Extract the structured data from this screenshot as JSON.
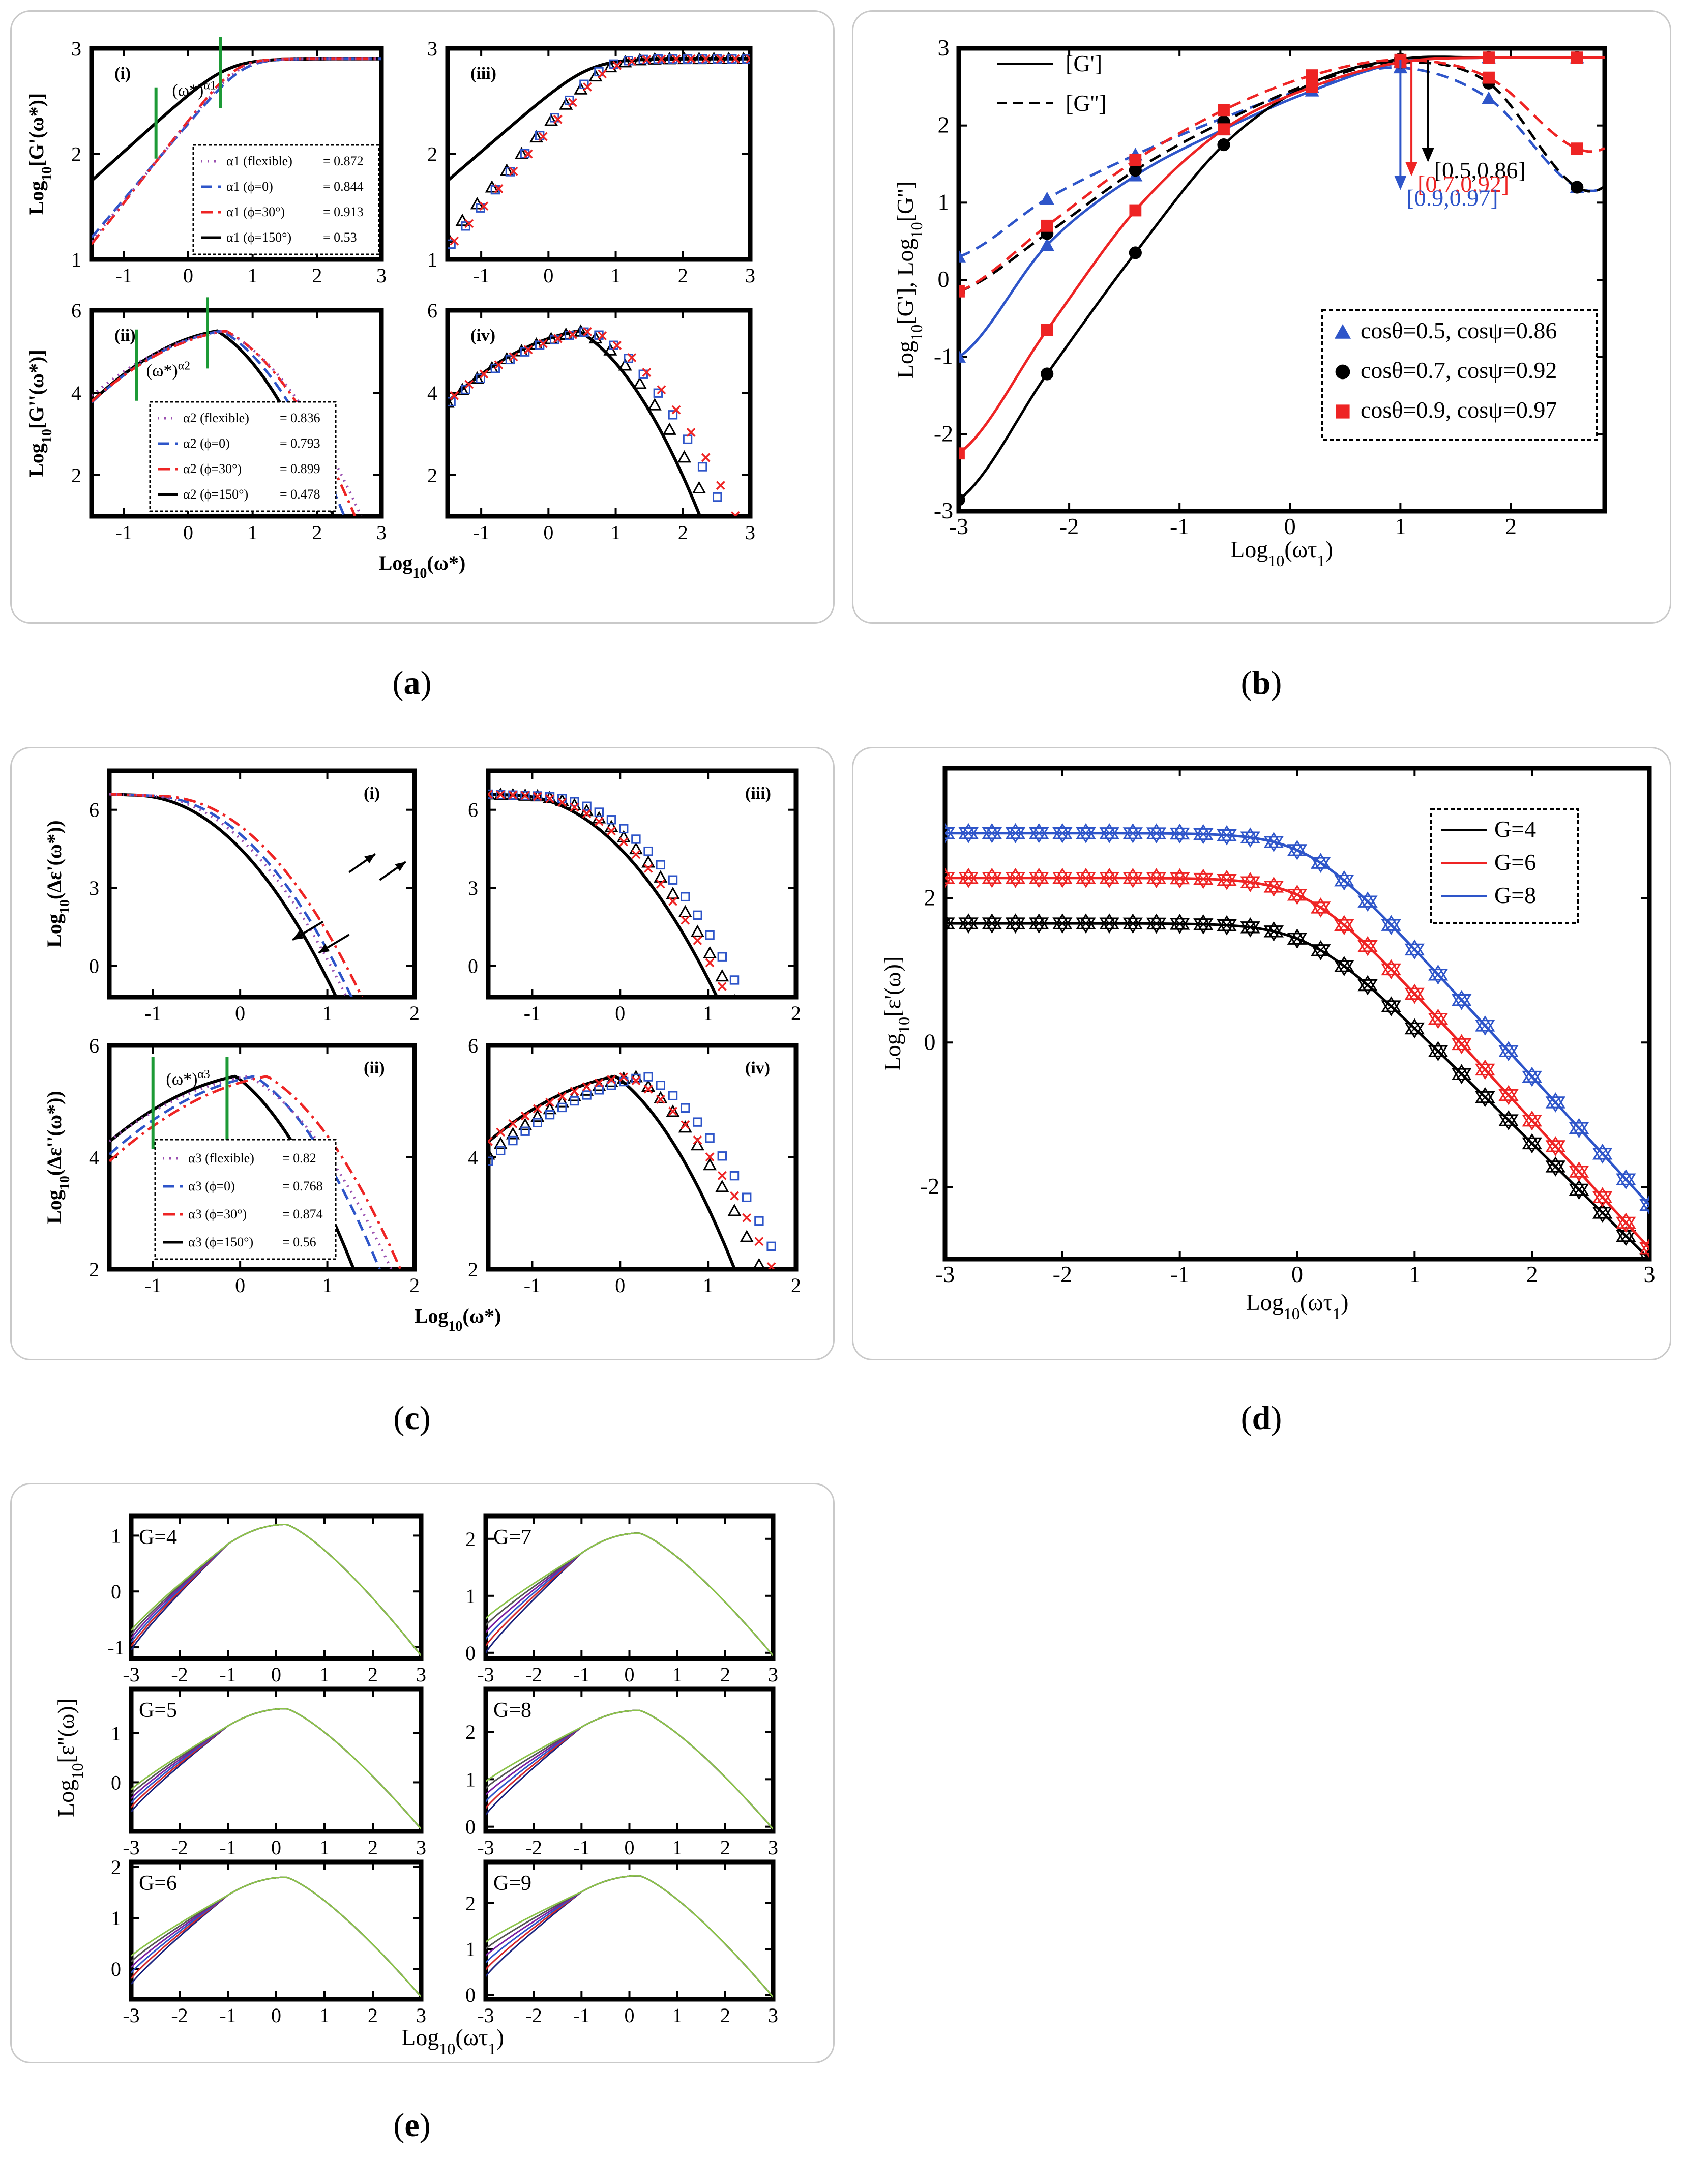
{
  "captions": {
    "a": "a",
    "b": "b",
    "c": "c",
    "d": "d",
    "e": "e"
  },
  "colors": {
    "black": "#000000",
    "blue": "#2e55c9",
    "red": "#ee2424",
    "purple": "#9a4fb0",
    "green": "#1c9a36"
  },
  "chart_data": [
    {
      "id": "a",
      "type": "line",
      "xlabel": "Log10(ω*)",
      "subplots": [
        {
          "label": "(i)",
          "ylabel": "Log10[G'(ω*)]",
          "xlim": [
            -1.5,
            3
          ],
          "ylim": [
            1,
            3
          ],
          "xticks": [
            -1,
            0,
            1,
            2,
            3
          ],
          "yticks": [
            1,
            2,
            3
          ],
          "annotation": "(ω*)^α1",
          "legend": [
            {
              "label": "α1 (flexible)",
              "value": "= 0.872",
              "color": "#9a4fb0",
              "style": "dot"
            },
            {
              "label": "α1 (ϕ=0)",
              "value": "= 0.844",
              "color": "#2e55c9",
              "style": "dash"
            },
            {
              "label": "α1 (ϕ=30°)",
              "value": "= 0.913",
              "color": "#ee2424",
              "style": "dashdot"
            },
            {
              "label": "α1 (ϕ=150°)",
              "value": "= 0.53",
              "color": "#000000",
              "style": "solid"
            }
          ]
        },
        {
          "label": "(iii)",
          "ylabel": "",
          "xlim": [
            -1.5,
            3
          ],
          "ylim": [
            1,
            3
          ],
          "xticks": [
            -1,
            0,
            1,
            2,
            3
          ],
          "yticks": [
            1,
            2,
            3
          ]
        },
        {
          "label": "(ii)",
          "ylabel": "Log10[G''(ω*)]",
          "xlim": [
            -1.5,
            3
          ],
          "ylim": [
            1,
            6
          ],
          "xticks": [
            -1,
            0,
            1,
            2,
            3
          ],
          "yticks": [
            2,
            4,
            6
          ],
          "annotation": "(ω*)^α2",
          "legend": [
            {
              "label": "α2 (flexible)",
              "value": "= 0.836",
              "color": "#9a4fb0",
              "style": "dot"
            },
            {
              "label": "α2 (ϕ=0)",
              "value": "= 0.793",
              "color": "#2e55c9",
              "style": "dash"
            },
            {
              "label": "α2 (ϕ=30°)",
              "value": "= 0.899",
              "color": "#ee2424",
              "style": "dashdot"
            },
            {
              "label": "α2 (ϕ=150°)",
              "value": "= 0.478",
              "color": "#000000",
              "style": "solid"
            }
          ]
        },
        {
          "label": "(iv)",
          "ylabel": "",
          "xlim": [
            -1.5,
            3
          ],
          "ylim": [
            1,
            6
          ],
          "xticks": [
            -1,
            0,
            1,
            2,
            3
          ],
          "yticks": [
            2,
            4,
            6
          ]
        }
      ]
    },
    {
      "id": "b",
      "type": "line",
      "xlabel": "Log10(ωτ1)",
      "ylabel": "Log10[G'], Log10[G'']",
      "xlim": [
        -3,
        2.85
      ],
      "ylim": [
        -3,
        3
      ],
      "xticks": [
        -3,
        -2,
        -1,
        0,
        1,
        2
      ],
      "yticks": [
        -3,
        -2,
        -1,
        0,
        1,
        2,
        3
      ],
      "style_legend": [
        {
          "label": "[G']",
          "style": "solid"
        },
        {
          "label": "[G'']",
          "style": "dash"
        }
      ],
      "legend": [
        {
          "label": "cosθ=0.5, cosψ=0.86",
          "color": "#2e55c9",
          "marker": "triangle"
        },
        {
          "label": "cosθ=0.7, cosψ=0.92",
          "color": "#000000",
          "marker": "circle"
        },
        {
          "label": "cosθ=0.9, cosψ=0.97",
          "color": "#ee2424",
          "marker": "square"
        }
      ],
      "crossovers": [
        {
          "label": "[0.5,0.86]",
          "x": 1.25,
          "color": "#000000"
        },
        {
          "label": "[0.7,0.92]",
          "x": 1.1,
          "color": "#ee2424"
        },
        {
          "label": "[0.9,0.97]",
          "x": 1.0,
          "color": "#2e55c9"
        }
      ],
      "x": [
        -3,
        -2.2,
        -1.4,
        -0.6,
        0.2,
        1.0,
        1.8,
        2.6
      ],
      "series": [
        {
          "name": "G' (0.5,0.86)",
          "color": "#2e55c9",
          "style": "solid",
          "marker": "triangle",
          "values": [
            -1.0,
            0.45,
            1.35,
            1.95,
            2.45,
            2.82,
            2.88,
            2.88
          ]
        },
        {
          "name": "G'' (0.5,0.86)",
          "color": "#2e55c9",
          "style": "dash",
          "marker": "triangle",
          "values": [
            0.3,
            1.05,
            1.62,
            2.1,
            2.5,
            2.75,
            2.35,
            1.2
          ]
        },
        {
          "name": "G' (0.7,0.92)",
          "color": "#000000",
          "style": "solid",
          "marker": "circle",
          "values": [
            -2.85,
            -1.22,
            0.35,
            1.75,
            2.55,
            2.86,
            2.88,
            2.88
          ]
        },
        {
          "name": "G'' (0.7,0.92)",
          "color": "#000000",
          "style": "dash",
          "marker": "circle",
          "values": [
            -0.15,
            0.6,
            1.42,
            2.05,
            2.55,
            2.82,
            2.55,
            1.2
          ]
        },
        {
          "name": "G' (0.9,0.97)",
          "color": "#ee2424",
          "style": "solid",
          "marker": "square",
          "values": [
            -2.25,
            -0.65,
            0.9,
            1.95,
            2.5,
            2.82,
            2.88,
            2.88
          ]
        },
        {
          "name": "G'' (0.9,0.97)",
          "color": "#ee2424",
          "style": "dash",
          "marker": "square",
          "values": [
            -0.15,
            0.7,
            1.55,
            2.2,
            2.65,
            2.85,
            2.62,
            1.7
          ]
        }
      ]
    },
    {
      "id": "c",
      "type": "line",
      "xlabel": "Log10(ω*)",
      "subplots": [
        {
          "label": "(i)",
          "ylabel": "Log10(Δε'(ω*))",
          "xlim": [
            -1.5,
            2
          ],
          "ylim": [
            -1.2,
            7.5
          ],
          "xticks": [
            -1,
            0,
            1,
            2
          ],
          "yticks": [
            0,
            3,
            6
          ]
        },
        {
          "label": "(iii)",
          "ylabel": "",
          "xlim": [
            -1.5,
            2
          ],
          "ylim": [
            -1.2,
            7.5
          ],
          "xticks": [
            -1,
            0,
            1,
            2
          ],
          "yticks": [
            0,
            3,
            6
          ]
        },
        {
          "label": "(ii)",
          "ylabel": "Log10(Δε''(ω*))",
          "xlim": [
            -1.5,
            2
          ],
          "ylim": [
            2,
            6
          ],
          "xticks": [
            -1,
            0,
            1,
            2
          ],
          "yticks": [
            2,
            4,
            6
          ],
          "annotation": "(ω*)^α3",
          "legend": [
            {
              "label": "α3 (flexible)",
              "value": "= 0.82",
              "color": "#9a4fb0",
              "style": "dot"
            },
            {
              "label": "α3 (ϕ=0)",
              "value": "= 0.768",
              "color": "#2e55c9",
              "style": "dash"
            },
            {
              "label": "α3 (ϕ=30°)",
              "value": "= 0.874",
              "color": "#ee2424",
              "style": "dashdot"
            },
            {
              "label": "α3 (ϕ=150°)",
              "value": "= 0.56",
              "color": "#000000",
              "style": "solid"
            }
          ]
        },
        {
          "label": "(iv)",
          "ylabel": "",
          "xlim": [
            -1.5,
            2
          ],
          "ylim": [
            2,
            6
          ],
          "xticks": [
            -1,
            0,
            1,
            2
          ],
          "yticks": [
            2,
            4,
            6
          ]
        }
      ]
    },
    {
      "id": "d",
      "type": "line",
      "xlabel": "Log10(ωτ1)",
      "ylabel": "Log10[ε'(ω)]",
      "xlim": [
        -3,
        3
      ],
      "ylim": [
        -3,
        3.8
      ],
      "xticks": [
        -3,
        -2,
        -1,
        0,
        1,
        2,
        3
      ],
      "yticks": [
        -2,
        0,
        2
      ],
      "legend": [
        {
          "label": "G=4",
          "color": "#000000"
        },
        {
          "label": "G=6",
          "color": "#ee2424"
        },
        {
          "label": "G=8",
          "color": "#2e55c9"
        }
      ],
      "series": [
        {
          "name": "G=4",
          "color": "#000000",
          "start": 1.65,
          "end": -3.0
        },
        {
          "name": "G=6",
          "color": "#ee2424",
          "start": 2.28,
          "end": -2.85
        },
        {
          "name": "G=8",
          "color": "#2e55c9",
          "start": 2.9,
          "end": -2.25
        }
      ]
    },
    {
      "id": "e",
      "type": "line",
      "xlabel": "Log10(ωτ1)",
      "ylabel": "Log10[ε''(ω)]",
      "line_colors": [
        "#1a237e",
        "#d62728",
        "#2e55c9",
        "#7b1fa2",
        "#555555",
        "#8bc34a"
      ],
      "subplots": [
        {
          "label": "G=4",
          "xlim": [
            -3,
            3
          ],
          "ylim": [
            -1.2,
            1.35
          ],
          "yticks": [
            -1,
            0,
            1
          ],
          "xticks": [
            -3,
            -2,
            -1,
            0,
            1,
            2,
            3
          ],
          "peak": 1.2,
          "low": -1.05,
          "spread": 0.35
        },
        {
          "label": "G=7",
          "xlim": [
            -3,
            3
          ],
          "ylim": [
            -0.1,
            2.4
          ],
          "yticks": [
            0,
            1,
            2
          ],
          "xticks": [
            -3,
            -2,
            -1,
            0,
            1,
            2,
            3
          ],
          "peak": 2.1,
          "low": 0.0,
          "spread": 0.6
        },
        {
          "label": "G=5",
          "xlim": [
            -3,
            3
          ],
          "ylim": [
            -1.0,
            1.9
          ],
          "yticks": [
            0,
            1
          ],
          "xticks": [
            -3,
            -2,
            -1,
            0,
            1,
            2,
            3
          ],
          "peak": 1.5,
          "low": -0.6,
          "spread": 0.45
        },
        {
          "label": "G=8",
          "xlim": [
            -3,
            3
          ],
          "ylim": [
            -0.1,
            2.9
          ],
          "yticks": [
            0,
            1,
            2
          ],
          "xticks": [
            -3,
            -2,
            -1,
            0,
            1,
            2,
            3
          ],
          "peak": 2.45,
          "low": 0.25,
          "spread": 0.7
        },
        {
          "label": "G=6",
          "xlim": [
            -3,
            3
          ],
          "ylim": [
            -0.6,
            2.1
          ],
          "yticks": [
            0,
            1,
            2
          ],
          "xticks": [
            -3,
            -2,
            -1,
            0,
            1,
            2,
            3
          ],
          "peak": 1.8,
          "low": -0.3,
          "spread": 0.55
        },
        {
          "label": "G=9",
          "xlim": [
            -3,
            3
          ],
          "ylim": [
            -0.1,
            2.9
          ],
          "yticks": [
            0,
            1,
            2
          ],
          "xticks": [
            -3,
            -2,
            -1,
            0,
            1,
            2,
            3
          ],
          "peak": 2.6,
          "low": 0.4,
          "spread": 0.75
        }
      ]
    }
  ]
}
